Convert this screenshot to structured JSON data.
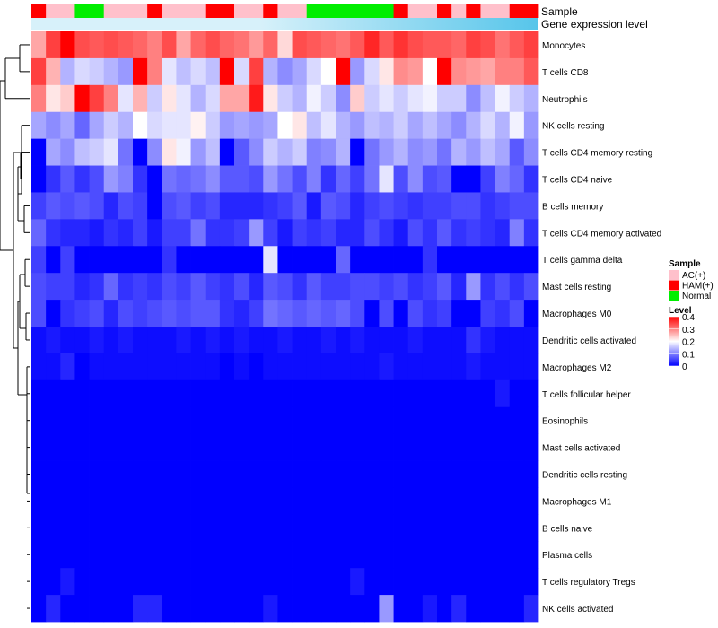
{
  "chart_data": {
    "type": "heatmap",
    "title": "",
    "annotation_rows": [
      "Sample",
      "Gene expression level"
    ],
    "sample_groups": [
      "HAM(+)",
      "AC(+)",
      "AC(+)",
      "Normal",
      "Normal",
      "AC(+)",
      "AC(+)",
      "AC(+)",
      "HAM(+)",
      "AC(+)",
      "AC(+)",
      "AC(+)",
      "HAM(+)",
      "HAM(+)",
      "AC(+)",
      "AC(+)",
      "HAM(+)",
      "AC(+)",
      "AC(+)",
      "Normal",
      "Normal",
      "Normal",
      "Normal",
      "Normal",
      "Normal",
      "HAM(+)",
      "AC(+)",
      "AC(+)",
      "HAM(+)",
      "AC(+)",
      "HAM(+)",
      "AC(+)",
      "AC(+)",
      "HAM(+)",
      "HAM(+)"
    ],
    "rows": [
      "Monocytes",
      "T cells CD8",
      "Neutrophils",
      "NK cells resting",
      "T cells CD4 memory resting",
      "T cells CD4 naive",
      "B cells memory",
      "T cells CD4 memory activated",
      "T cells gamma delta",
      "Mast cells resting",
      "Macrophages M0",
      "Dendritic cells activated",
      "Macrophages M2",
      "T cells follicular helper",
      "Eosinophils",
      "Mast cells activated",
      "Dendritic cells resting",
      "Macrophages M1",
      "B cells naive",
      "Plasma cells",
      "T cells regulatory  Tregs",
      "NK cells activated"
    ],
    "values": [
      [
        0.27,
        0.35,
        0.4,
        0.34,
        0.33,
        0.34,
        0.33,
        0.32,
        0.3,
        0.34,
        0.27,
        0.32,
        0.34,
        0.32,
        0.31,
        0.28,
        0.32,
        0.23,
        0.34,
        0.33,
        0.32,
        0.31,
        0.33,
        0.37,
        0.33,
        0.36,
        0.34,
        0.33,
        0.33,
        0.32,
        0.35,
        0.34,
        0.31,
        0.33,
        0.35
      ],
      [
        0.35,
        0.26,
        0.14,
        0.17,
        0.16,
        0.14,
        0.12,
        0.4,
        0.3,
        0.18,
        0.15,
        0.17,
        0.15,
        0.4,
        0.17,
        0.35,
        0.14,
        0.11,
        0.13,
        0.17,
        0.2,
        0.4,
        0.12,
        0.17,
        0.22,
        0.29,
        0.28,
        0.2,
        0.4,
        0.29,
        0.28,
        0.27,
        0.3,
        0.3,
        0.33
      ],
      [
        0.3,
        0.22,
        0.24,
        0.4,
        0.35,
        0.3,
        0.18,
        0.26,
        0.16,
        0.22,
        0.18,
        0.14,
        0.17,
        0.27,
        0.27,
        0.38,
        0.22,
        0.16,
        0.14,
        0.19,
        0.16,
        0.11,
        0.24,
        0.16,
        0.18,
        0.16,
        0.18,
        0.19,
        0.16,
        0.16,
        0.11,
        0.15,
        0.19,
        0.16,
        0.14
      ],
      [
        0.13,
        0.11,
        0.13,
        0.08,
        0.13,
        0.16,
        0.14,
        0.2,
        0.17,
        0.18,
        0.18,
        0.21,
        0.16,
        0.12,
        0.13,
        0.12,
        0.13,
        0.2,
        0.22,
        0.15,
        0.18,
        0.14,
        0.12,
        0.15,
        0.14,
        0.16,
        0.13,
        0.15,
        0.13,
        0.11,
        0.14,
        0.17,
        0.14,
        0.19,
        0.12
      ],
      [
        0.0,
        0.13,
        0.11,
        0.15,
        0.16,
        0.18,
        0.09,
        0.0,
        0.11,
        0.22,
        0.19,
        0.12,
        0.15,
        0.0,
        0.07,
        0.11,
        0.16,
        0.14,
        0.16,
        0.1,
        0.11,
        0.14,
        0.0,
        0.09,
        0.12,
        0.14,
        0.11,
        0.12,
        0.09,
        0.14,
        0.12,
        0.15,
        0.13,
        0.07,
        0.11
      ],
      [
        0.0,
        0.04,
        0.07,
        0.04,
        0.06,
        0.12,
        0.1,
        0.04,
        0.0,
        0.09,
        0.08,
        0.09,
        0.11,
        0.07,
        0.07,
        0.06,
        0.12,
        0.09,
        0.06,
        0.1,
        0.04,
        0.08,
        0.05,
        0.09,
        0.18,
        0.06,
        0.11,
        0.06,
        0.07,
        0.0,
        0.0,
        0.05,
        0.1,
        0.08,
        0.04
      ],
      [
        0.05,
        0.07,
        0.06,
        0.07,
        0.06,
        0.03,
        0.06,
        0.05,
        0.0,
        0.06,
        0.07,
        0.05,
        0.06,
        0.03,
        0.03,
        0.03,
        0.04,
        0.05,
        0.07,
        0.02,
        0.07,
        0.06,
        0.03,
        0.05,
        0.06,
        0.05,
        0.04,
        0.05,
        0.05,
        0.06,
        0.06,
        0.04,
        0.05,
        0.06,
        0.06
      ],
      [
        0.08,
        0.04,
        0.03,
        0.03,
        0.02,
        0.04,
        0.03,
        0.05,
        0.02,
        0.05,
        0.05,
        0.09,
        0.04,
        0.04,
        0.05,
        0.12,
        0.05,
        0.02,
        0.05,
        0.04,
        0.05,
        0.03,
        0.03,
        0.06,
        0.04,
        0.02,
        0.06,
        0.04,
        0.07,
        0.04,
        0.05,
        0.04,
        0.03,
        0.1,
        0.04
      ],
      [
        0.05,
        0.0,
        0.05,
        0.0,
        0.0,
        0.0,
        0.0,
        0.0,
        0.0,
        0.04,
        0.0,
        0.0,
        0.0,
        0.0,
        0.0,
        0.0,
        0.18,
        0.0,
        0.0,
        0.0,
        0.0,
        0.08,
        0.0,
        0.0,
        0.0,
        0.0,
        0.0,
        0.04,
        0.0,
        0.0,
        0.0,
        0.0,
        0.0,
        0.0,
        0.0
      ],
      [
        0.06,
        0.05,
        0.05,
        0.03,
        0.04,
        0.08,
        0.04,
        0.05,
        0.04,
        0.06,
        0.05,
        0.07,
        0.05,
        0.04,
        0.06,
        0.03,
        0.07,
        0.06,
        0.04,
        0.07,
        0.05,
        0.05,
        0.06,
        0.06,
        0.05,
        0.06,
        0.04,
        0.05,
        0.07,
        0.03,
        0.12,
        0.04,
        0.06,
        0.04,
        0.06
      ],
      [
        0.06,
        0.0,
        0.04,
        0.05,
        0.06,
        0.03,
        0.06,
        0.05,
        0.06,
        0.07,
        0.06,
        0.07,
        0.07,
        0.04,
        0.03,
        0.05,
        0.09,
        0.08,
        0.07,
        0.08,
        0.07,
        0.08,
        0.06,
        0.0,
        0.06,
        0.0,
        0.06,
        0.04,
        0.05,
        0.0,
        0.0,
        0.05,
        0.04,
        0.06,
        0.0
      ],
      [
        0.01,
        0.02,
        0.01,
        0.01,
        0.02,
        0.01,
        0.02,
        0.01,
        0.01,
        0.01,
        0.02,
        0.01,
        0.02,
        0.01,
        0.02,
        0.01,
        0.01,
        0.02,
        0.01,
        0.01,
        0.02,
        0.01,
        0.02,
        0.01,
        0.01,
        0.01,
        0.02,
        0.01,
        0.01,
        0.01,
        0.04,
        0.02,
        0.01,
        0.01,
        0.01
      ],
      [
        0.01,
        0.01,
        0.03,
        0.0,
        0.01,
        0.01,
        0.01,
        0.01,
        0.01,
        0.01,
        0.01,
        0.01,
        0.01,
        0.0,
        0.01,
        0.0,
        0.01,
        0.01,
        0.01,
        0.01,
        0.01,
        0.01,
        0.01,
        0.01,
        0.02,
        0.01,
        0.01,
        0.01,
        0.01,
        0.01,
        0.02,
        0.01,
        0.01,
        0.01,
        0.01
      ],
      [
        0.0,
        0.0,
        0.0,
        0.0,
        0.0,
        0.0,
        0.0,
        0.0,
        0.0,
        0.0,
        0.0,
        0.0,
        0.0,
        0.0,
        0.0,
        0.0,
        0.0,
        0.0,
        0.0,
        0.0,
        0.0,
        0.0,
        0.0,
        0.0,
        0.0,
        0.0,
        0.0,
        0.0,
        0.0,
        0.0,
        0.0,
        0.0,
        0.02,
        0.0,
        0.0
      ],
      [
        0.0,
        0.0,
        0.0,
        0.0,
        0.0,
        0.0,
        0.0,
        0.0,
        0.0,
        0.0,
        0.0,
        0.0,
        0.0,
        0.0,
        0.0,
        0.0,
        0.0,
        0.0,
        0.0,
        0.0,
        0.0,
        0.0,
        0.0,
        0.0,
        0.0,
        0.0,
        0.0,
        0.0,
        0.0,
        0.0,
        0.0,
        0.0,
        0.0,
        0.0,
        0.0
      ],
      [
        0.0,
        0.0,
        0.0,
        0.0,
        0.0,
        0.0,
        0.0,
        0.0,
        0.0,
        0.0,
        0.0,
        0.0,
        0.0,
        0.0,
        0.0,
        0.0,
        0.0,
        0.0,
        0.0,
        0.0,
        0.0,
        0.0,
        0.0,
        0.0,
        0.0,
        0.0,
        0.0,
        0.0,
        0.0,
        0.0,
        0.0,
        0.0,
        0.0,
        0.0,
        0.0
      ],
      [
        0.0,
        0.0,
        0.0,
        0.0,
        0.0,
        0.0,
        0.0,
        0.0,
        0.0,
        0.0,
        0.0,
        0.0,
        0.0,
        0.0,
        0.0,
        0.0,
        0.0,
        0.0,
        0.0,
        0.0,
        0.0,
        0.0,
        0.0,
        0.0,
        0.0,
        0.0,
        0.0,
        0.0,
        0.0,
        0.0,
        0.0,
        0.0,
        0.0,
        0.0,
        0.0
      ],
      [
        0.0,
        0.0,
        0.0,
        0.0,
        0.0,
        0.0,
        0.0,
        0.0,
        0.0,
        0.0,
        0.0,
        0.0,
        0.0,
        0.0,
        0.0,
        0.0,
        0.0,
        0.0,
        0.0,
        0.0,
        0.0,
        0.0,
        0.0,
        0.0,
        0.0,
        0.0,
        0.0,
        0.0,
        0.0,
        0.0,
        0.0,
        0.0,
        0.0,
        0.0,
        0.0
      ],
      [
        0.0,
        0.0,
        0.0,
        0.0,
        0.0,
        0.0,
        0.0,
        0.0,
        0.0,
        0.0,
        0.0,
        0.0,
        0.0,
        0.0,
        0.0,
        0.0,
        0.0,
        0.0,
        0.0,
        0.0,
        0.0,
        0.0,
        0.0,
        0.0,
        0.0,
        0.0,
        0.0,
        0.0,
        0.0,
        0.0,
        0.0,
        0.0,
        0.0,
        0.0,
        0.0
      ],
      [
        0.0,
        0.0,
        0.0,
        0.0,
        0.0,
        0.0,
        0.0,
        0.0,
        0.0,
        0.0,
        0.0,
        0.0,
        0.0,
        0.0,
        0.0,
        0.0,
        0.0,
        0.0,
        0.0,
        0.0,
        0.0,
        0.0,
        0.0,
        0.0,
        0.0,
        0.0,
        0.0,
        0.0,
        0.0,
        0.0,
        0.0,
        0.0,
        0.0,
        0.0,
        0.0
      ],
      [
        0.0,
        0.0,
        0.02,
        0.0,
        0.0,
        0.0,
        0.0,
        0.0,
        0.0,
        0.0,
        0.0,
        0.0,
        0.0,
        0.0,
        0.0,
        0.0,
        0.0,
        0.0,
        0.0,
        0.0,
        0.0,
        0.0,
        0.02,
        0.0,
        0.0,
        0.0,
        0.0,
        0.0,
        0.0,
        0.0,
        0.0,
        0.0,
        0.0,
        0.0,
        0.0
      ],
      [
        0.0,
        0.03,
        0.0,
        0.0,
        0.0,
        0.0,
        0.0,
        0.03,
        0.03,
        0.0,
        0.0,
        0.0,
        0.0,
        0.0,
        0.0,
        0.0,
        0.02,
        0.0,
        0.0,
        0.0,
        0.0,
        0.0,
        0.0,
        0.0,
        0.12,
        0.0,
        0.0,
        0.02,
        0.0,
        0.03,
        0.0,
        0.0,
        0.0,
        0.0,
        0.03
      ]
    ],
    "legend": {
      "sample_title": "Sample",
      "sample_entries": [
        {
          "label": "AC(+)",
          "color": "#FFC0CB"
        },
        {
          "label": "HAM(+)",
          "color": "#FF0000"
        },
        {
          "label": "Normal",
          "color": "#00EE00"
        }
      ],
      "level_title": "Level",
      "level_ticks": [
        "0.4",
        "0.3",
        "0.2",
        "0.1",
        "0"
      ],
      "level_range": [
        0,
        0.4
      ]
    },
    "colors": {
      "low": "#0000FF",
      "mid": "#FFFFFF",
      "high": "#FF0000",
      "expression_bar": "#56C5EA",
      "expression_bar_light": "#D7F1FA"
    }
  }
}
